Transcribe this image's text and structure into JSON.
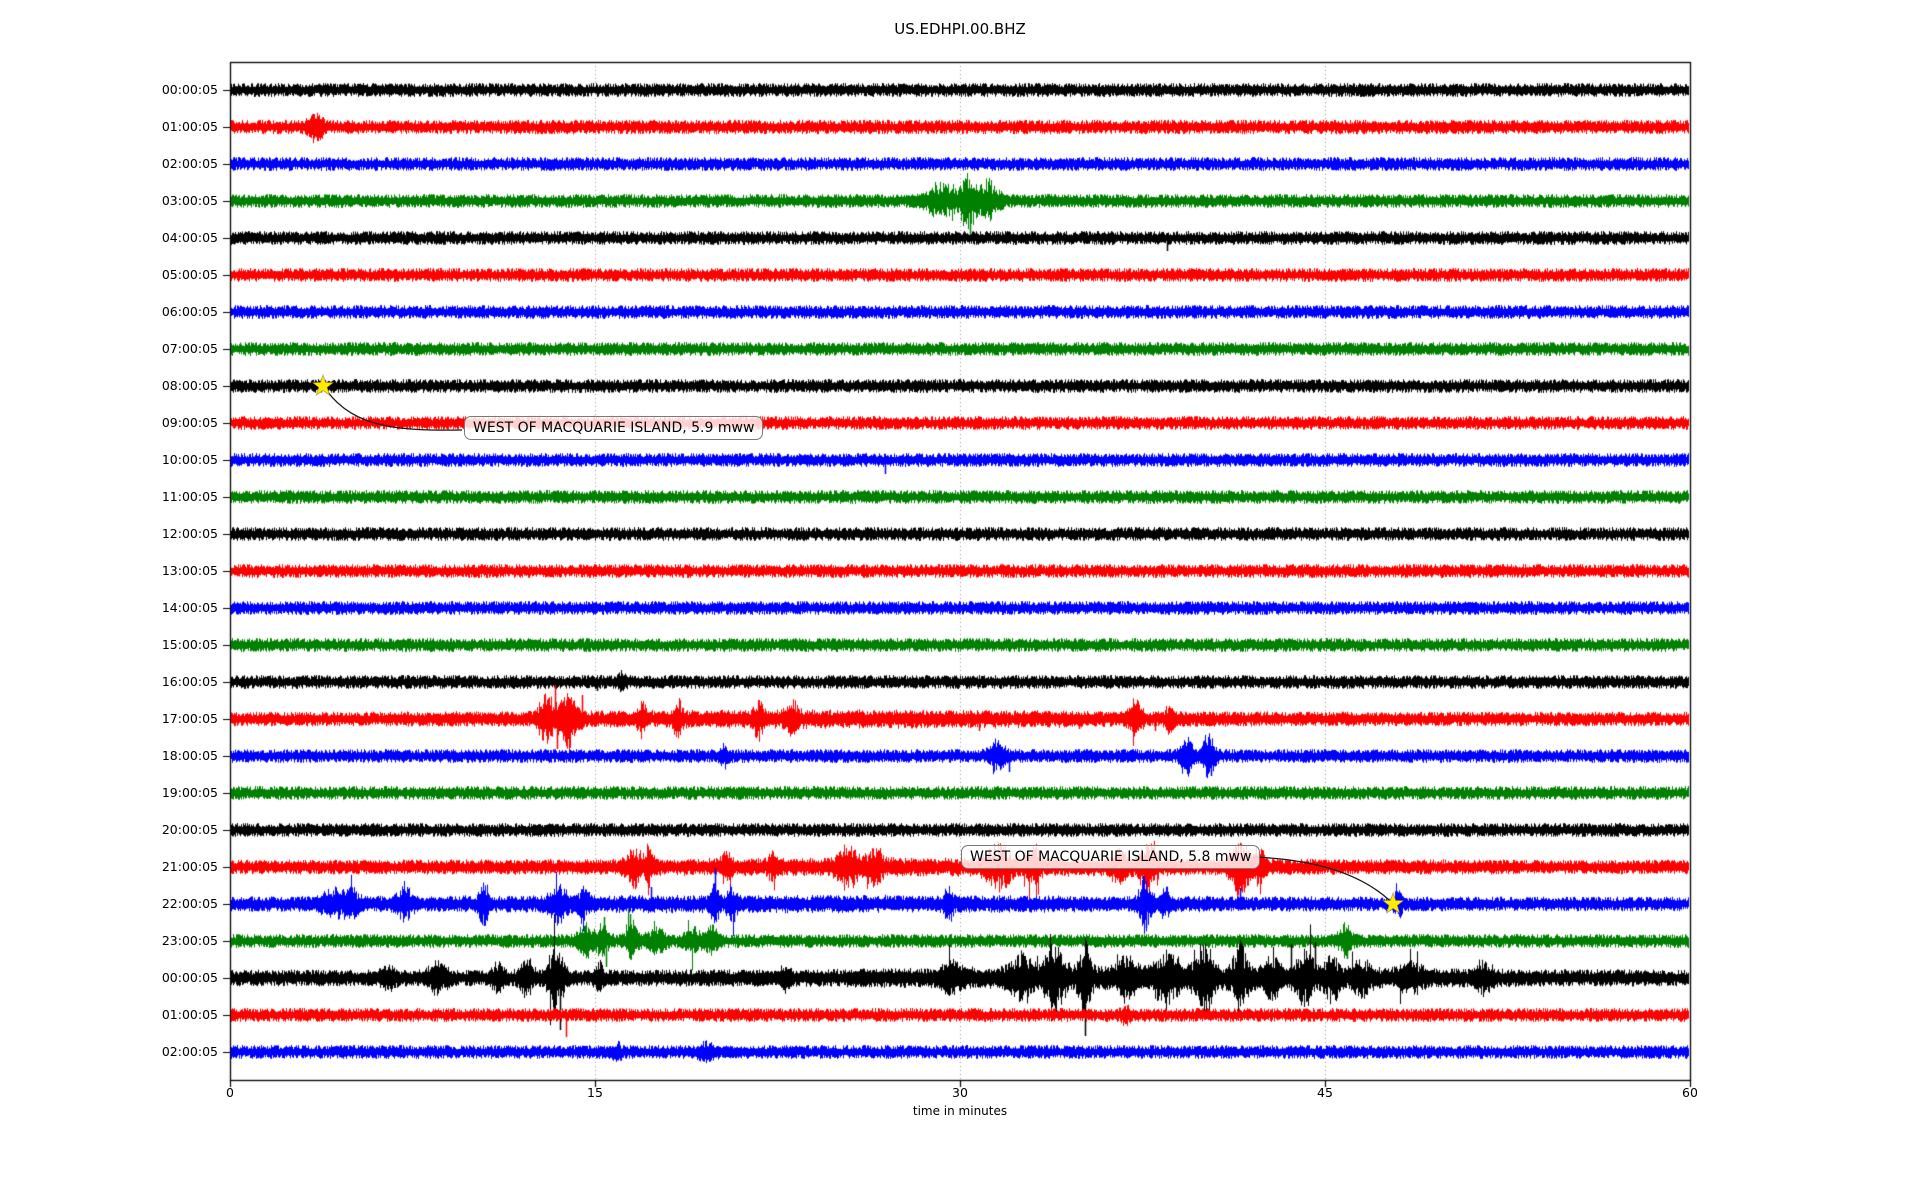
{
  "title": "US.EDHPI.00.BHZ",
  "chart_data": {
    "type": "line",
    "subtype": "helicorder-dayplot",
    "xlabel": "time in minutes",
    "xlim": [
      0,
      60
    ],
    "xticks": [
      0,
      15,
      30,
      45,
      60
    ],
    "grid": {
      "vertical_minutes": [
        15,
        30,
        45
      ],
      "style": "dotted",
      "color": "#999999"
    },
    "color_cycle": [
      "#000000",
      "#ff0000",
      "#0000ff",
      "#008000"
    ],
    "marker_color": "#ffee00",
    "rows": [
      {
        "label": "00:00:05",
        "color": "#000000",
        "base": 5.0,
        "events": [
          {
            "t": 47.2,
            "a": 7,
            "s": "up"
          }
        ]
      },
      {
        "label": "01:00:05",
        "color": "#ff0000",
        "base": 5.2,
        "events": [
          {
            "t": 3.5,
            "a": 9,
            "d": 0.5
          }
        ]
      },
      {
        "label": "02:00:05",
        "color": "#0000ff",
        "base": 5.0,
        "events": []
      },
      {
        "label": "03:00:05",
        "color": "#008000",
        "base": 5.0,
        "events": [
          {
            "t": 29.2,
            "a": 13,
            "d": 0.9
          },
          {
            "t": 30.3,
            "a": 20,
            "d": 0.5
          },
          {
            "t": 30.4,
            "a": 33,
            "s": "down"
          },
          {
            "t": 31.1,
            "a": 15,
            "d": 0.7
          }
        ]
      },
      {
        "label": "04:00:05",
        "color": "#000000",
        "base": 5.0,
        "events": [
          {
            "t": 38.5,
            "a": 13,
            "s": "down"
          }
        ]
      },
      {
        "label": "05:00:05",
        "color": "#ff0000",
        "base": 5.0,
        "events": []
      },
      {
        "label": "06:00:05",
        "color": "#0000ff",
        "base": 5.0,
        "events": []
      },
      {
        "label": "07:00:05",
        "color": "#008000",
        "base": 5.0,
        "events": []
      },
      {
        "label": "08:00:05",
        "color": "#000000",
        "base": 5.0,
        "events": []
      },
      {
        "label": "09:00:05",
        "color": "#ff0000",
        "base": 5.0,
        "events": []
      },
      {
        "label": "10:00:05",
        "color": "#0000ff",
        "base": 5.0,
        "events": [
          {
            "t": 26.9,
            "a": 14,
            "s": "down"
          }
        ]
      },
      {
        "label": "11:00:05",
        "color": "#008000",
        "base": 5.0,
        "events": []
      },
      {
        "label": "12:00:05",
        "color": "#000000",
        "base": 5.0,
        "events": []
      },
      {
        "label": "13:00:05",
        "color": "#ff0000",
        "base": 5.0,
        "events": []
      },
      {
        "label": "14:00:05",
        "color": "#0000ff",
        "base": 5.0,
        "events": []
      },
      {
        "label": "15:00:05",
        "color": "#008000",
        "base": 5.0,
        "events": []
      },
      {
        "label": "16:00:05",
        "color": "#000000",
        "base": 5.0,
        "events": [
          {
            "t": 15.1,
            "a": 9,
            "s": "down"
          },
          {
            "t": 16.1,
            "a": 6,
            "d": 0.25
          }
        ]
      },
      {
        "label": "17:00:05",
        "color": "#ff0000",
        "base": 5.2,
        "events": [
          {
            "t": 25,
            "a": 2.5,
            "d": 20
          },
          {
            "t": 13.0,
            "a": 18,
            "d": 0.5
          },
          {
            "t": 13.35,
            "a": 34,
            "s": "up"
          },
          {
            "t": 13.45,
            "a": 30,
            "s": "down"
          },
          {
            "t": 13.9,
            "a": 20,
            "d": 0.6
          },
          {
            "t": 14.45,
            "a": 24,
            "s": "up"
          },
          {
            "t": 16.9,
            "a": 10,
            "d": 0.3
          },
          {
            "t": 18.4,
            "a": 15,
            "d": 0.25
          },
          {
            "t": 21.7,
            "a": 13,
            "d": 0.3
          },
          {
            "t": 23.1,
            "a": 9,
            "d": 0.4
          },
          {
            "t": 30.8,
            "a": 12,
            "s": "down"
          },
          {
            "t": 34.9,
            "a": 10,
            "s": "down"
          },
          {
            "t": 37.2,
            "a": 12,
            "d": 0.4
          },
          {
            "t": 38.0,
            "a": 12,
            "s": "down"
          },
          {
            "t": 38.6,
            "a": 9,
            "d": 0.3
          }
        ]
      },
      {
        "label": "18:00:05",
        "color": "#0000ff",
        "base": 5.0,
        "events": [
          {
            "t": 20.3,
            "a": 7,
            "d": 0.3
          },
          {
            "t": 31.5,
            "a": 12,
            "d": 0.5
          },
          {
            "t": 32.0,
            "a": 16,
            "s": "down"
          },
          {
            "t": 39.3,
            "a": 16,
            "d": 0.4
          },
          {
            "t": 40.2,
            "a": 17,
            "d": 0.4
          },
          {
            "t": 40.3,
            "a": 20,
            "s": "down"
          }
        ]
      },
      {
        "label": "19:00:05",
        "color": "#008000",
        "base": 5.0,
        "events": []
      },
      {
        "label": "20:00:05",
        "color": "#000000",
        "base": 5.0,
        "events": []
      },
      {
        "label": "21:00:05",
        "color": "#ff0000",
        "base": 5.2,
        "events": [
          {
            "t": 30,
            "a": 2.5,
            "d": 25
          },
          {
            "t": 16.6,
            "a": 13,
            "d": 0.5
          },
          {
            "t": 17.2,
            "a": 17,
            "d": 0.3
          },
          {
            "t": 20.4,
            "a": 12,
            "d": 0.3
          },
          {
            "t": 22.3,
            "a": 9,
            "d": 0.3
          },
          {
            "t": 25.4,
            "a": 15,
            "d": 0.7
          },
          {
            "t": 26.5,
            "a": 13,
            "d": 0.5
          },
          {
            "t": 31.6,
            "a": 15,
            "d": 0.8
          },
          {
            "t": 33.0,
            "a": 13,
            "d": 0.5
          },
          {
            "t": 36.5,
            "a": 13,
            "d": 0.5
          },
          {
            "t": 37.7,
            "a": 15,
            "d": 0.6
          },
          {
            "t": 41.5,
            "a": 19,
            "d": 0.6
          },
          {
            "t": 41.6,
            "a": 24,
            "s": "down"
          },
          {
            "t": 42.3,
            "a": 14,
            "d": 0.4
          }
        ]
      },
      {
        "label": "22:00:05",
        "color": "#0000ff",
        "base": 5.2,
        "events": [
          {
            "t": 22,
            "a": 2,
            "d": 30
          },
          {
            "t": 4.2,
            "a": 9,
            "d": 0.8
          },
          {
            "t": 5.0,
            "a": 8,
            "d": 0.5
          },
          {
            "t": 7.2,
            "a": 11,
            "d": 0.5
          },
          {
            "t": 10.4,
            "a": 15,
            "d": 0.3
          },
          {
            "t": 10.45,
            "a": 22,
            "s": "down"
          },
          {
            "t": 13.5,
            "a": 11,
            "d": 0.6
          },
          {
            "t": 14.5,
            "a": 9,
            "d": 0.4
          },
          {
            "t": 17.3,
            "a": 17,
            "s": "up"
          },
          {
            "t": 19.9,
            "a": 14,
            "d": 0.3
          },
          {
            "t": 19.93,
            "a": 36,
            "s": "up"
          },
          {
            "t": 20.6,
            "a": 11,
            "d": 0.3
          },
          {
            "t": 20.7,
            "a": 18,
            "s": "down"
          },
          {
            "t": 29.5,
            "a": 9,
            "d": 0.4
          },
          {
            "t": 37.6,
            "a": 20,
            "d": 0.4
          },
          {
            "t": 37.65,
            "a": 24,
            "s": "down"
          },
          {
            "t": 38.4,
            "a": 11,
            "d": 0.3
          },
          {
            "t": 41.5,
            "a": 16,
            "s": "up"
          },
          {
            "t": 48.0,
            "a": 7,
            "d": 0.3
          }
        ]
      },
      {
        "label": "23:00:05",
        "color": "#008000",
        "base": 5.0,
        "events": [
          {
            "t": 14.6,
            "a": 11,
            "d": 0.5
          },
          {
            "t": 15.3,
            "a": 12,
            "d": 0.4
          },
          {
            "t": 15.35,
            "a": 24,
            "s": "up"
          },
          {
            "t": 15.45,
            "a": 26,
            "s": "down"
          },
          {
            "t": 16.45,
            "a": 27,
            "s": "up"
          },
          {
            "t": 16.5,
            "a": 14,
            "d": 0.4
          },
          {
            "t": 17.5,
            "a": 9,
            "d": 0.6
          },
          {
            "t": 19.0,
            "a": 9,
            "d": 0.5
          },
          {
            "t": 19.8,
            "a": 11,
            "d": 0.4
          },
          {
            "t": 45.8,
            "a": 12,
            "d": 0.4
          },
          {
            "t": 45.9,
            "a": 18,
            "s": "down"
          }
        ]
      },
      {
        "label": "00:00:05",
        "color": "#000000",
        "base": 6.0,
        "events": [
          {
            "t": 38,
            "a": 4,
            "d": 18
          },
          {
            "t": 6.5,
            "a": 8,
            "d": 0.5
          },
          {
            "t": 8.5,
            "a": 11,
            "d": 0.6
          },
          {
            "t": 11.0,
            "a": 9,
            "d": 0.4
          },
          {
            "t": 12.2,
            "a": 13,
            "d": 0.5
          },
          {
            "t": 13.4,
            "a": 26,
            "d": 0.5
          },
          {
            "t": 13.55,
            "a": 52,
            "s": "down"
          },
          {
            "t": 15.2,
            "a": 11,
            "d": 0.3
          },
          {
            "t": 22.8,
            "a": 8,
            "d": 0.3
          },
          {
            "t": 29.7,
            "a": 11,
            "d": 0.6
          },
          {
            "t": 32.5,
            "a": 16,
            "d": 0.8
          },
          {
            "t": 33.9,
            "a": 22,
            "d": 0.7
          },
          {
            "t": 35.1,
            "a": 26,
            "d": 0.4
          },
          {
            "t": 35.15,
            "a": 58,
            "s": "down"
          },
          {
            "t": 36.8,
            "a": 13,
            "d": 0.6
          },
          {
            "t": 38.5,
            "a": 18,
            "d": 0.8
          },
          {
            "t": 40.0,
            "a": 26,
            "d": 0.6
          },
          {
            "t": 41.5,
            "a": 23,
            "d": 0.5
          },
          {
            "t": 42.8,
            "a": 18,
            "d": 0.5
          },
          {
            "t": 43.6,
            "a": 34,
            "s": "up"
          },
          {
            "t": 44.2,
            "a": 20,
            "d": 0.6
          },
          {
            "t": 44.6,
            "a": 36,
            "s": "up"
          },
          {
            "t": 45.3,
            "a": 16,
            "d": 0.5
          },
          {
            "t": 46.5,
            "a": 11,
            "d": 0.6
          },
          {
            "t": 48.5,
            "a": 8,
            "d": 0.8
          },
          {
            "t": 51.5,
            "a": 10,
            "d": 0.6
          }
        ]
      },
      {
        "label": "01:00:05",
        "color": "#ff0000",
        "base": 5.0,
        "events": [
          {
            "t": 13.8,
            "a": 22,
            "s": "down"
          },
          {
            "t": 36.8,
            "a": 6,
            "d": 0.3
          }
        ]
      },
      {
        "label": "02:00:05",
        "color": "#0000ff",
        "base": 5.0,
        "events": [
          {
            "t": 15.9,
            "a": 5,
            "d": 0.3
          },
          {
            "t": 19.6,
            "a": 7,
            "d": 0.5
          }
        ]
      }
    ],
    "annotations": [
      {
        "text": "WEST OF MACQUARIE ISLAND, 5.9 mww",
        "row_index": 8,
        "row_label": "08:00:05",
        "time_minutes": 3.82,
        "marker": "yellow-star"
      },
      {
        "text": "WEST OF MACQUARIE ISLAND, 5.8 mww",
        "row_index": 22,
        "row_label": "22:00:05",
        "time_minutes": 47.8,
        "marker": "yellow-star"
      }
    ]
  }
}
